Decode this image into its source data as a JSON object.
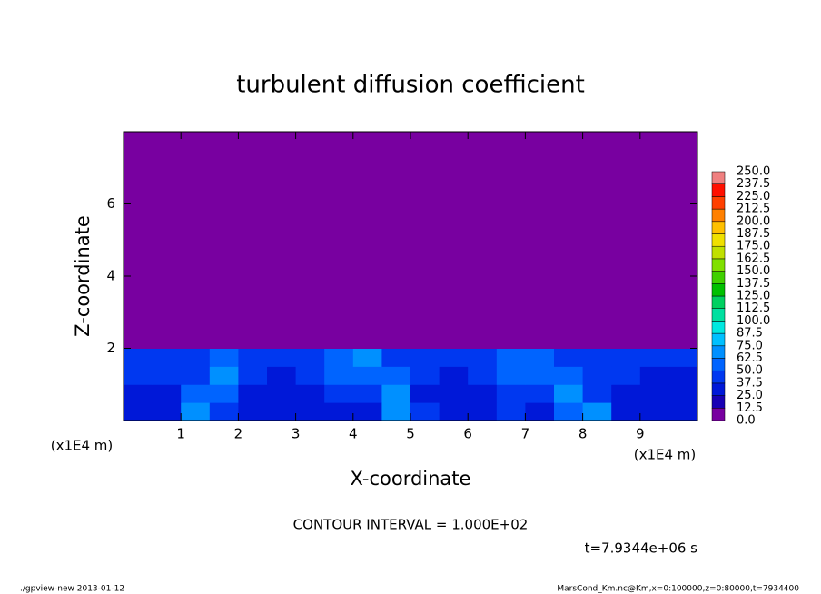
{
  "chart_data": {
    "type": "heatmap",
    "title": "turbulent diffusion coefficient",
    "x_label": "X-coordinate",
    "y_label": "Z-coordinate",
    "x_unit": "(x1E4 m)",
    "y_unit": "(x1E4 m)",
    "note": "CONTOUR INTERVAL = 1.000E+02",
    "time": "t=7.9344e+06 s",
    "footer_left": "./gpview-new  2013-01-12",
    "footer_right": "MarsCond_Km.nc@Km,x=0:100000,z=0:80000,t=7934400",
    "xlim": [
      0,
      10
    ],
    "ylim": [
      0,
      8
    ],
    "xticks": [
      1,
      2,
      3,
      4,
      5,
      6,
      7,
      8,
      9
    ],
    "yticks": [
      2,
      4,
      6
    ],
    "x_edges": [
      0,
      0.5,
      1,
      1.5,
      2,
      2.5,
      3,
      3.5,
      4,
      4.5,
      5,
      5.5,
      6,
      6.5,
      7,
      7.5,
      8,
      8.5,
      9,
      9.5,
      10
    ],
    "y_edges": [
      0,
      0.5,
      1,
      1.5,
      2,
      8
    ],
    "values": [
      [
        30,
        28,
        70,
        45,
        30,
        28,
        30,
        32,
        35,
        65,
        40,
        30,
        30,
        38,
        35,
        60,
        70,
        35,
        30,
        28
      ],
      [
        35,
        32,
        60,
        55,
        30,
        30,
        32,
        40,
        45,
        70,
        35,
        32,
        35,
        45,
        40,
        65,
        45,
        35,
        32,
        30
      ],
      [
        38,
        40,
        45,
        65,
        40,
        35,
        38,
        50,
        60,
        55,
        40,
        35,
        40,
        55,
        50,
        60,
        40,
        38,
        35,
        35
      ],
      [
        40,
        45,
        40,
        50,
        45,
        42,
        45,
        55,
        70,
        48,
        45,
        42,
        45,
        50,
        55,
        45,
        42,
        40,
        40,
        38
      ],
      [
        0,
        0,
        0,
        0,
        0,
        0,
        0,
        0,
        0,
        0,
        0,
        0,
        0,
        0,
        0,
        0,
        0,
        0,
        0,
        0
      ]
    ],
    "levels": [
      {
        "value": 0,
        "label": "0.0"
      },
      {
        "value": 12.5,
        "label": "12.5"
      },
      {
        "value": 25,
        "label": "25.0"
      },
      {
        "value": 37.5,
        "label": "37.5"
      },
      {
        "value": 50,
        "label": "50.0"
      },
      {
        "value": 62.5,
        "label": "62.5"
      },
      {
        "value": 75,
        "label": "75.0"
      },
      {
        "value": 87.5,
        "label": "87.5"
      },
      {
        "value": 100,
        "label": "100.0"
      },
      {
        "value": 112.5,
        "label": "112.5"
      },
      {
        "value": 125,
        "label": "125.0"
      },
      {
        "value": 137.5,
        "label": "137.5"
      },
      {
        "value": 150,
        "label": "150.0"
      },
      {
        "value": 162.5,
        "label": "162.5"
      },
      {
        "value": 175,
        "label": "175.0"
      },
      {
        "value": 187.5,
        "label": "187.5"
      },
      {
        "value": 200,
        "label": "200.0"
      },
      {
        "value": 212.5,
        "label": "212.5"
      },
      {
        "value": 225,
        "label": "225.0"
      },
      {
        "value": 237.5,
        "label": "237.5"
      },
      {
        "value": 250,
        "label": "250.0"
      }
    ],
    "level_colors": [
      "#7800a0",
      "#1800b4",
      "#0018d8",
      "#0038f0",
      "#0064ff",
      "#0090ff",
      "#00c0ff",
      "#00e8e0",
      "#00e0a0",
      "#00d060",
      "#00c000",
      "#40d000",
      "#80e000",
      "#c0e000",
      "#f0e000",
      "#ffc000",
      "#ff8000",
      "#ff4000",
      "#ff1000",
      "#f08080"
    ]
  }
}
